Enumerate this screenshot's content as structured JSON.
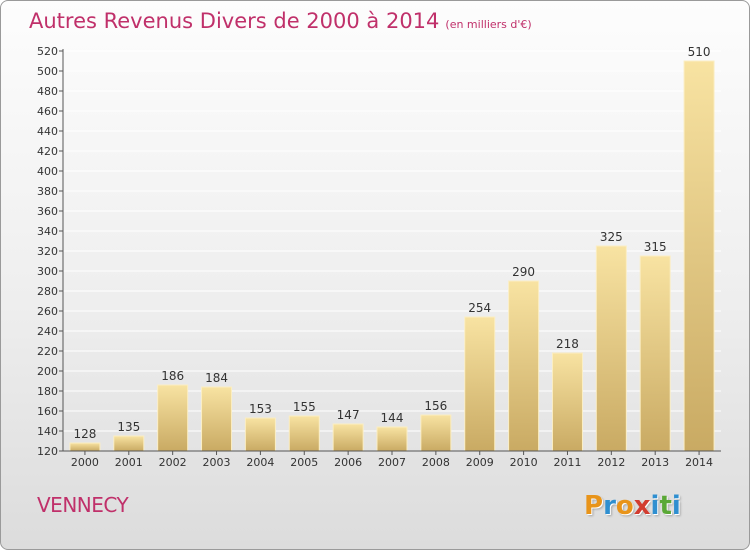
{
  "title": "Autres Revenus Divers de 2000 à 2014",
  "subtitle": "(en milliers d'€)",
  "commune": "VENNECY",
  "logo": {
    "text": "Proxiti",
    "letters": [
      "P",
      "r",
      "o",
      "x",
      "i",
      "t",
      "i"
    ],
    "colors": [
      "#e8941a",
      "#2f8fd0",
      "#e8941a",
      "#d23c2f",
      "#2f8fd0",
      "#5aa836",
      "#2f8fd0"
    ]
  },
  "colors": {
    "title": "#c0306a",
    "bar_top": "#f8e3a2",
    "bar_bottom": "#c9aa63",
    "grid": "#ffffff"
  },
  "chart_data": {
    "type": "bar",
    "categories": [
      "2000",
      "2001",
      "2002",
      "2003",
      "2004",
      "2005",
      "2006",
      "2007",
      "2008",
      "2009",
      "2010",
      "2011",
      "2012",
      "2013",
      "2014"
    ],
    "values": [
      128,
      135,
      186,
      184,
      153,
      155,
      147,
      144,
      156,
      254,
      290,
      218,
      325,
      315,
      510
    ],
    "ylim": [
      120,
      520
    ],
    "ytick_step": 20,
    "grid": true,
    "data_labels": true
  }
}
